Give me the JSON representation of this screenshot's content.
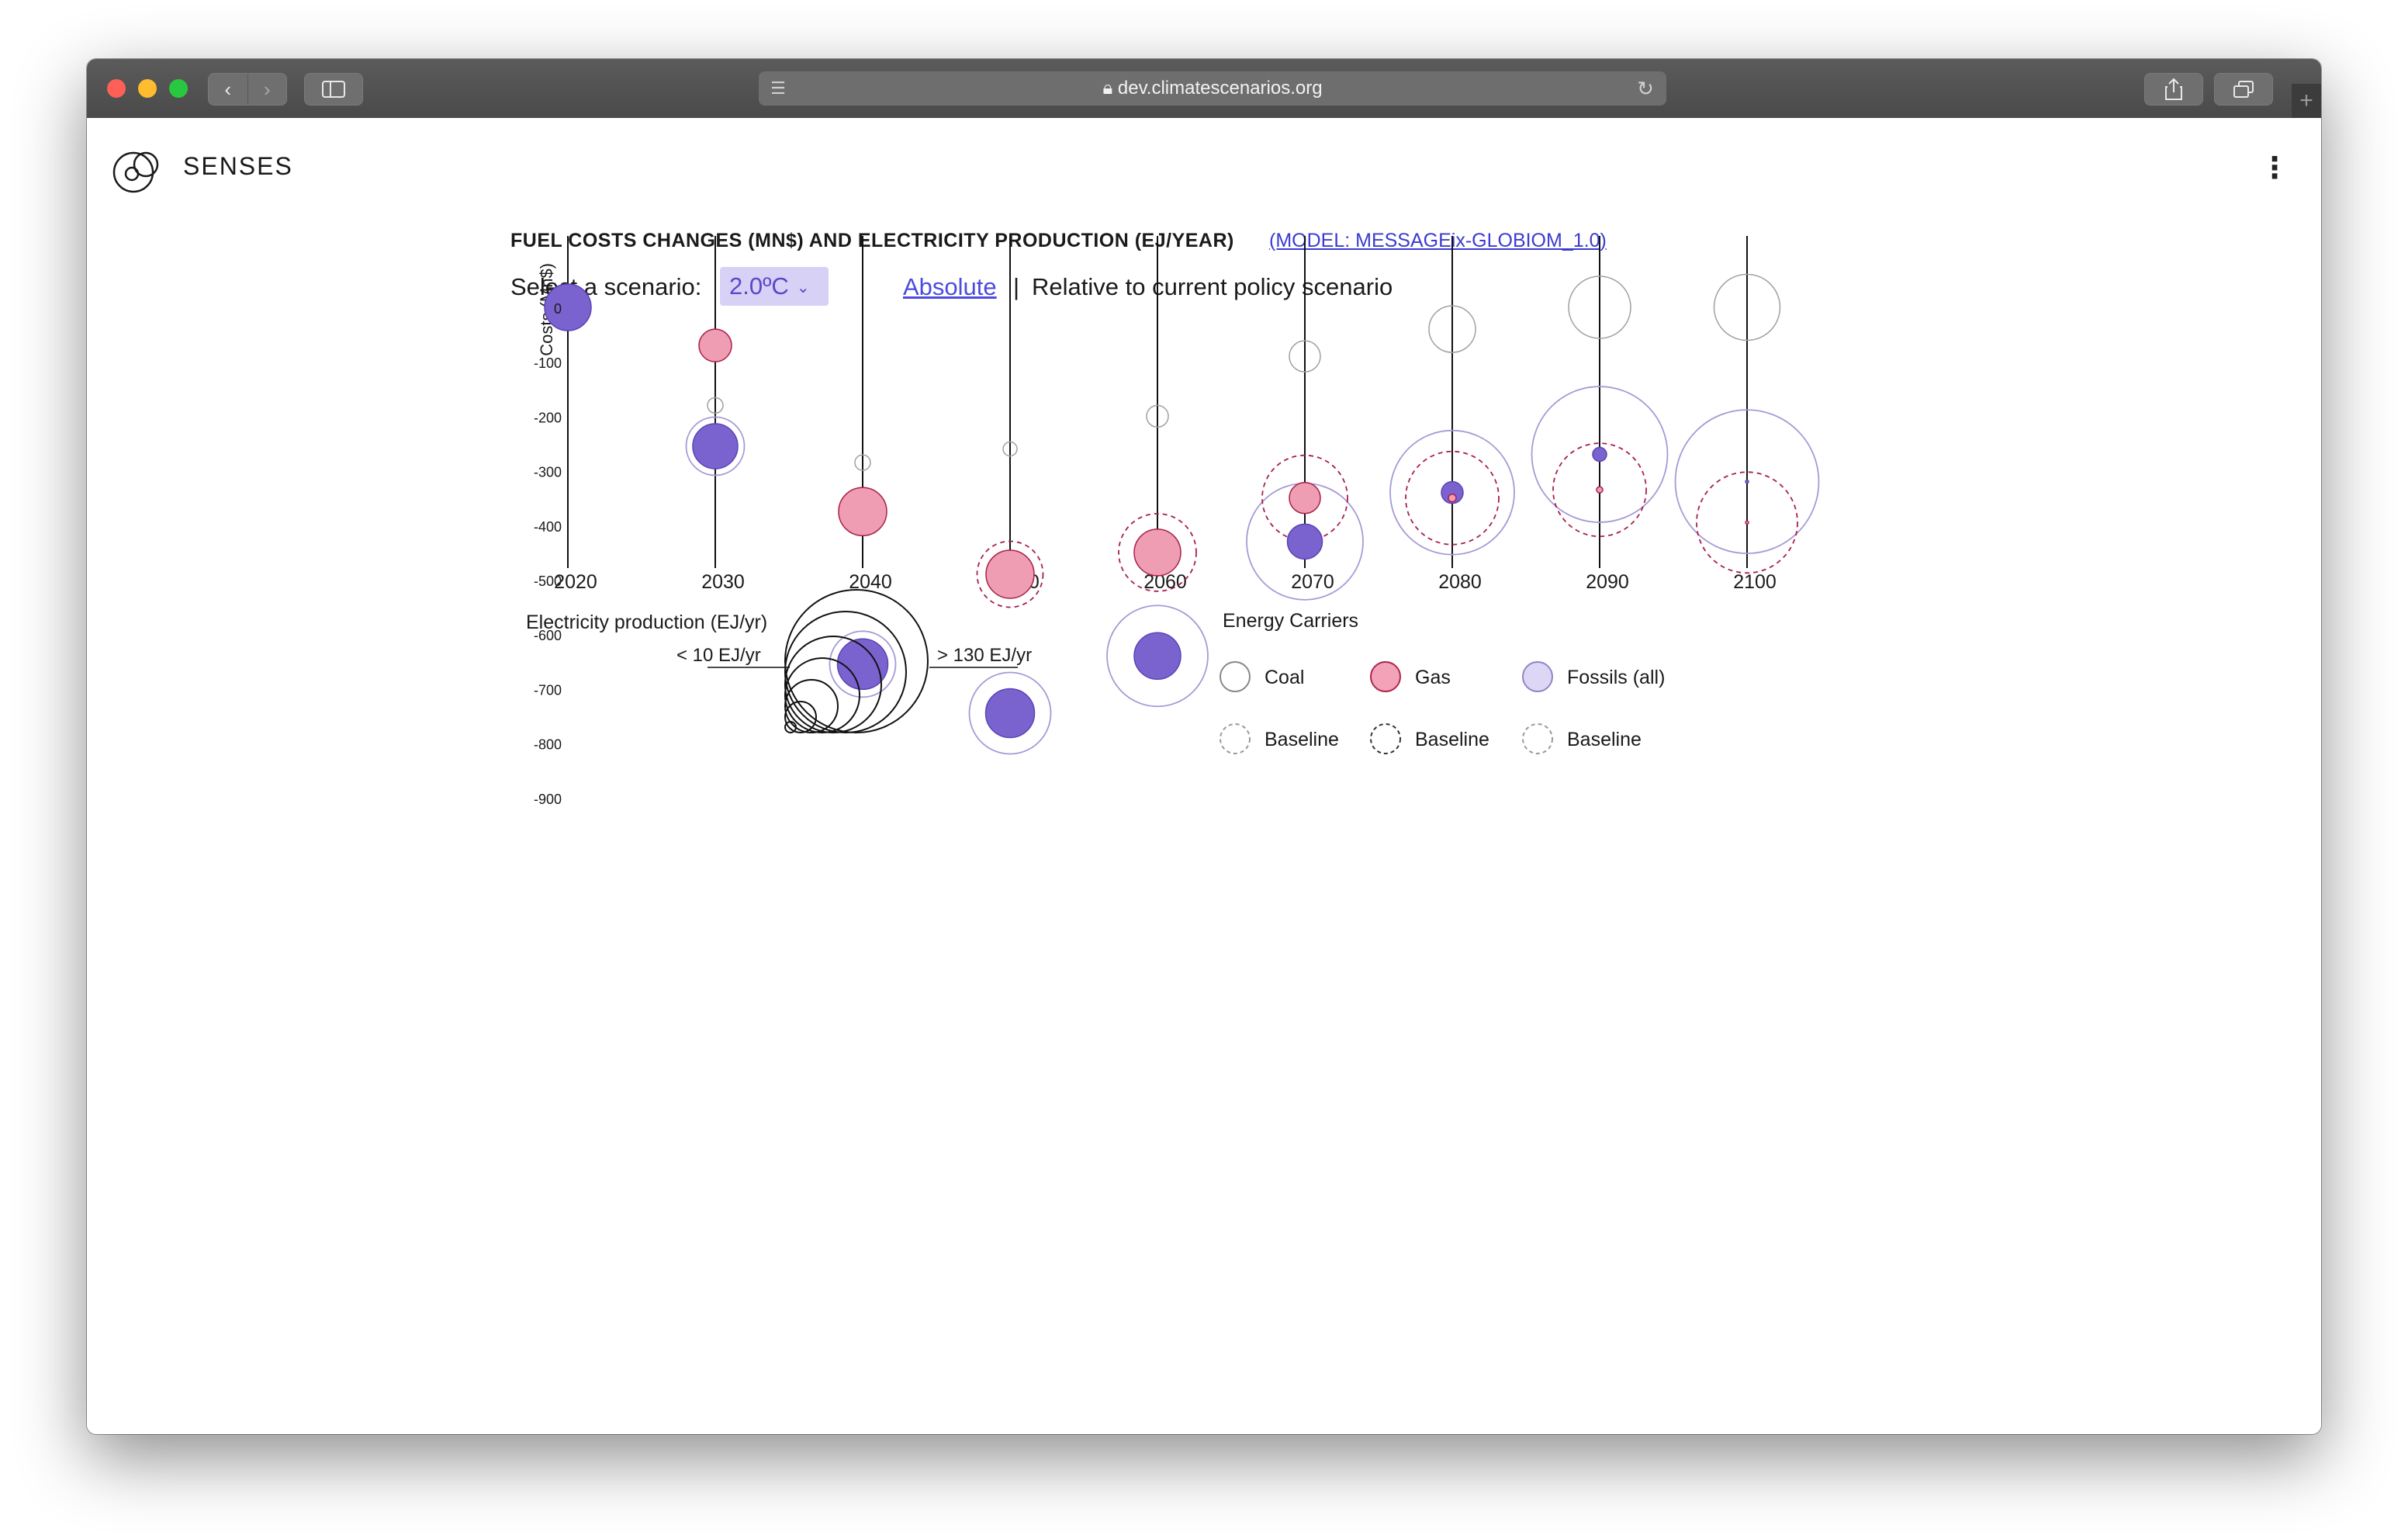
{
  "browser": {
    "url": "dev.climatescenarios.org",
    "reader_icon": "reader-mode-icon",
    "reload_icon": "reload-icon",
    "back_icon": "chevron-left-icon",
    "forward_icon": "chevron-right-icon",
    "sidebar_icon": "sidebar-icon",
    "share_icon": "share-icon",
    "tabs_icon": "tabs-icon",
    "new_tab_icon": "plus-icon"
  },
  "header": {
    "brand": "SENSES",
    "menu_icon": "kebab-menu-icon"
  },
  "controls": {
    "title": "FUEL COSTS CHANGES (MN$) AND ELECTRICITY PRODUCTION (EJ/YEAR)",
    "model_link": "(MODEL: MESSAGEix-GLOBIOM_1.0)",
    "scenario_label": "Select a scenario:",
    "scenario_value": "2.0ºC",
    "absolute_label": "Absolute",
    "separator": "|",
    "relative_label": "Relative to current policy scenario"
  },
  "legend_size": {
    "title": "Electricity production (EJ/yr)",
    "min_label": "< 10 EJ/yr",
    "max_label": "> 130 EJ/yr"
  },
  "legend_carriers": {
    "title": "Energy Carriers",
    "items": [
      {
        "label": "Coal",
        "color": "#ffffff",
        "stroke": "#888888"
      },
      {
        "label": "Gas",
        "color": "#f2a3b8",
        "stroke": "#b0254f"
      },
      {
        "label": "Fossils (all)",
        "color": "#ddd6f5",
        "stroke": "#8f86c8"
      }
    ],
    "baseline_items": [
      {
        "label": "Baseline",
        "stroke": "#999999"
      },
      {
        "label": "Baseline",
        "stroke": "#333333"
      },
      {
        "label": "Baseline",
        "stroke": "#999999"
      }
    ]
  },
  "colors": {
    "coal_stroke": "#a0a0a0",
    "gas_fill": "#ef9db2",
    "gas_stroke": "#a8204a",
    "fossil_fill": "#7b63cf",
    "fossil_stroke": "#5a44b5",
    "fossil_baseline_stroke": "#a79ad6",
    "gas_baseline_stroke": "#a8204a"
  },
  "chart_data": {
    "type": "scatter",
    "title": "FUEL COSTS CHANGES (MN$) AND ELECTRICITY PRODUCTION (EJ/YEAR)",
    "xlabel": "",
    "ylabel": "Costs (Mn$)",
    "x_ticks": [
      "2020",
      "2030",
      "2040",
      "2050",
      "2060",
      "2070",
      "2080",
      "2090",
      "2100"
    ],
    "y_ticks": [
      "0",
      "-100",
      "-200",
      "-300",
      "-400",
      "-500",
      "-600",
      "-700",
      "-800",
      "-900"
    ],
    "ylim": [
      40,
      -960
    ],
    "size_unit": "EJ/yr",
    "series": [
      {
        "name": "Coal",
        "style": "outline",
        "points": [
          {
            "x": "2030",
            "y": -180,
            "size": 20
          },
          {
            "x": "2040",
            "y": -285,
            "size": 20
          },
          {
            "x": "2050",
            "y": -260,
            "size": 18
          },
          {
            "x": "2060",
            "y": -200,
            "size": 28
          },
          {
            "x": "2070",
            "y": -90,
            "size": 40
          },
          {
            "x": "2080",
            "y": -40,
            "size": 60
          },
          {
            "x": "2090",
            "y": 0,
            "size": 80
          },
          {
            "x": "2100",
            "y": 0,
            "size": 85
          }
        ]
      },
      {
        "name": "Gas",
        "style": "filled",
        "points": [
          {
            "x": "2030",
            "y": -70,
            "size": 42
          },
          {
            "x": "2040",
            "y": -375,
            "size": 62
          },
          {
            "x": "2050",
            "y": -490,
            "size": 62
          },
          {
            "x": "2060",
            "y": -450,
            "size": 60
          },
          {
            "x": "2070",
            "y": -350,
            "size": 40
          },
          {
            "x": "2080",
            "y": -350,
            "size": 10
          },
          {
            "x": "2090",
            "y": -335,
            "size": 8
          },
          {
            "x": "2100",
            "y": -395,
            "size": 3
          }
        ]
      },
      {
        "name": "Fossils (all)",
        "style": "filled",
        "points": [
          {
            "x": "2020",
            "y": 0,
            "size": 60
          },
          {
            "x": "2030",
            "y": -255,
            "size": 58
          },
          {
            "x": "2040",
            "y": -655,
            "size": 65
          },
          {
            "x": "2050",
            "y": -745,
            "size": 63
          },
          {
            "x": "2060",
            "y": -640,
            "size": 60
          },
          {
            "x": "2070",
            "y": -430,
            "size": 45
          },
          {
            "x": "2080",
            "y": -340,
            "size": 28
          },
          {
            "x": "2090",
            "y": -270,
            "size": 18
          },
          {
            "x": "2100",
            "y": -320,
            "size": 3
          }
        ]
      },
      {
        "name": "Gas Baseline",
        "style": "dashed",
        "points": [
          {
            "x": "2050",
            "y": -490,
            "size": 85
          },
          {
            "x": "2060",
            "y": -450,
            "size": 100
          },
          {
            "x": "2070",
            "y": -350,
            "size": 110
          },
          {
            "x": "2080",
            "y": -350,
            "size": 120
          },
          {
            "x": "2090",
            "y": -335,
            "size": 120
          },
          {
            "x": "2100",
            "y": -395,
            "size": 130
          }
        ]
      },
      {
        "name": "Fossils Baseline",
        "style": "outline",
        "points": [
          {
            "x": "2030",
            "y": -255,
            "size": 75
          },
          {
            "x": "2040",
            "y": -655,
            "size": 85
          },
          {
            "x": "2050",
            "y": -745,
            "size": 105
          },
          {
            "x": "2060",
            "y": -640,
            "size": 130
          },
          {
            "x": "2070",
            "y": -430,
            "size": 150
          },
          {
            "x": "2080",
            "y": -340,
            "size": 160
          },
          {
            "x": "2090",
            "y": -270,
            "size": 175
          },
          {
            "x": "2100",
            "y": -320,
            "size": 185
          }
        ]
      }
    ]
  }
}
